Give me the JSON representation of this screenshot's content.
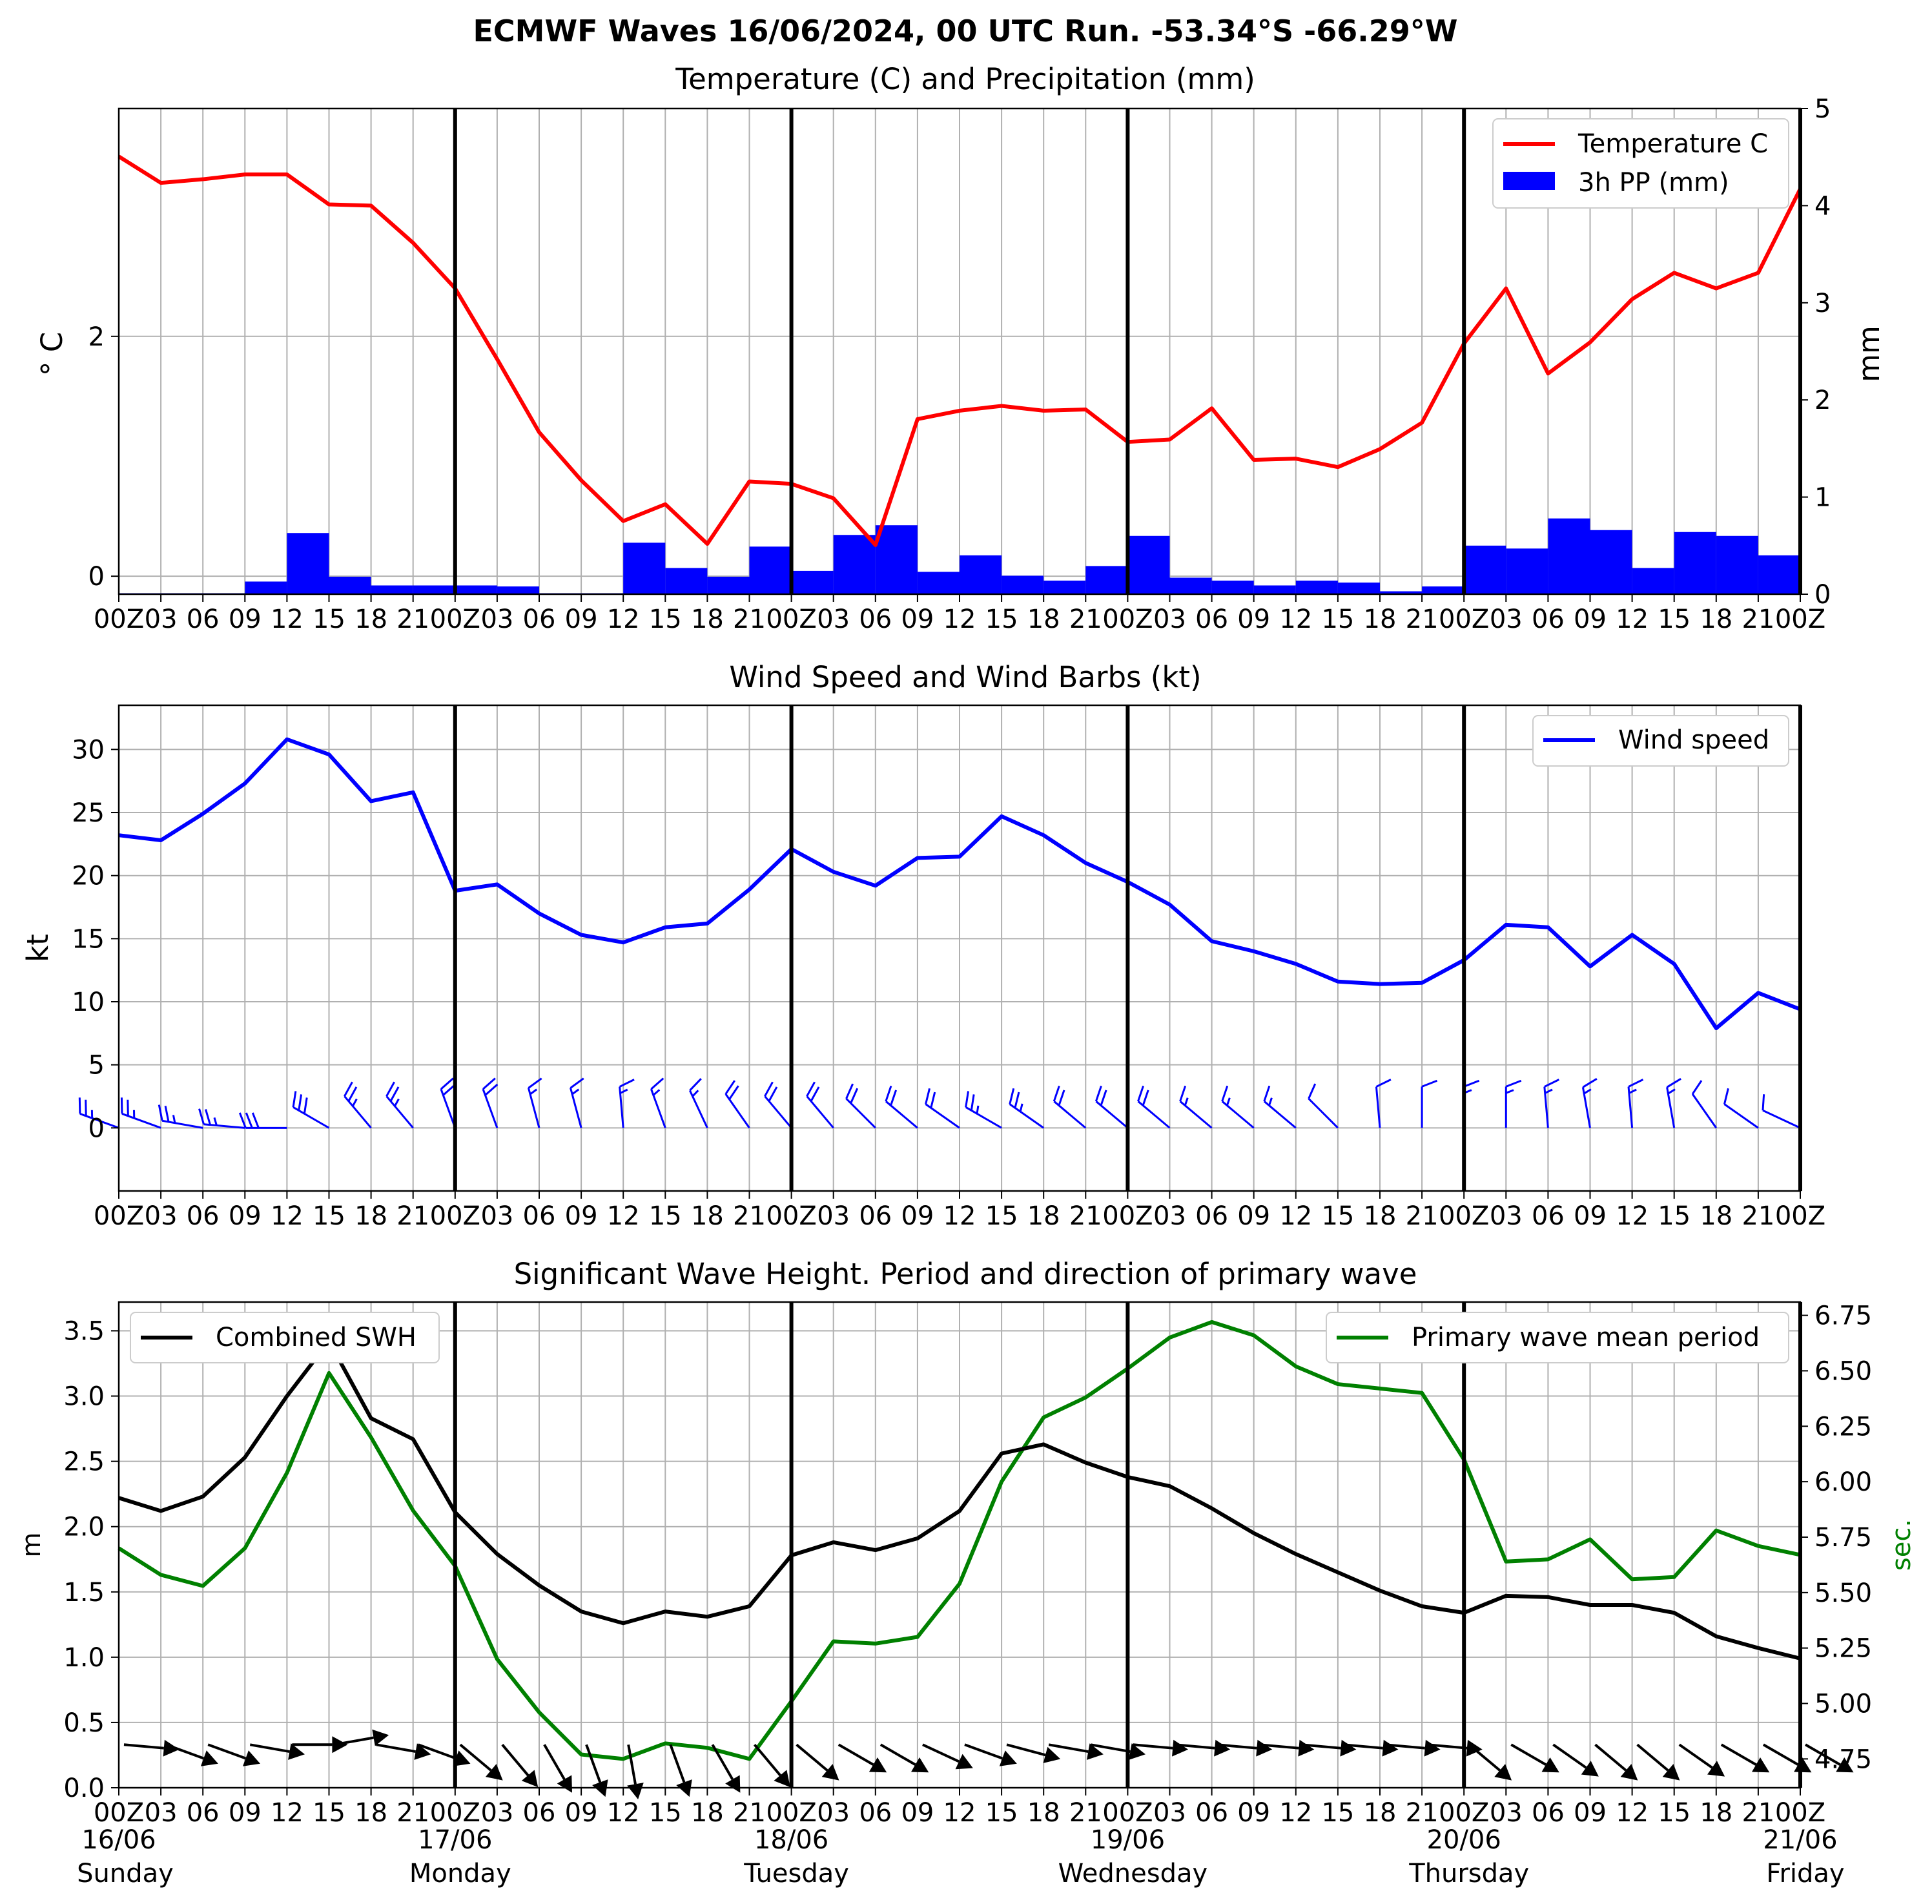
{
  "title": "ECMWF Waves 16/06/2024, 00 UTC Run. -53.34°S -66.29°W",
  "x_tick_labels": [
    "00Z",
    "03",
    "06",
    "09",
    "12",
    "15",
    "18",
    "21",
    "00Z",
    "03",
    "06",
    "09",
    "12",
    "15",
    "18",
    "21",
    "00Z",
    "03",
    "06",
    "09",
    "12",
    "15",
    "18",
    "21",
    "00Z",
    "03",
    "06",
    "09",
    "12",
    "15",
    "18",
    "21",
    "00Z",
    "03",
    "06",
    "09",
    "12",
    "15",
    "18",
    "21",
    "00Z"
  ],
  "dates": [
    {
      "date": "16/06",
      "day": "Sunday"
    },
    {
      "date": "17/06",
      "day": "Monday"
    },
    {
      "date": "18/06",
      "day": "Tuesday"
    },
    {
      "date": "19/06",
      "day": "Wednesday"
    },
    {
      "date": "20/06",
      "day": "Thursday"
    },
    {
      "date": "21/06",
      "day": "Friday"
    }
  ],
  "colors": {
    "temperature": "#ff0000",
    "precipitation": "#0000ff",
    "wind": "#0000ff",
    "swh": "#000000",
    "period": "#008000",
    "grid": "#b0b0b0"
  },
  "chart_data": [
    {
      "type": "line",
      "title": "Temperature (C) and Precipitation (mm)",
      "x_step_hours": 3,
      "ylabel": "° C",
      "ylabel_right": "mm",
      "ylim": [
        -0.15,
        3.9
      ],
      "ylim_right": [
        0,
        5
      ],
      "yticks": [
        0,
        2
      ],
      "yticks_right": [
        0,
        1,
        2,
        3,
        4,
        5
      ],
      "legend": "top-right",
      "grid": true,
      "series": [
        {
          "name": "Temperature C",
          "type": "line",
          "axis": "left",
          "values": [
            3.5,
            3.28,
            3.31,
            3.35,
            3.35,
            3.1,
            3.09,
            2.78,
            2.4,
            1.81,
            1.2,
            0.8,
            0.46,
            0.6,
            0.27,
            0.79,
            0.77,
            0.65,
            0.26,
            1.31,
            1.38,
            1.42,
            1.38,
            1.39,
            1.12,
            1.14,
            1.4,
            0.97,
            0.98,
            0.91,
            1.06,
            1.28,
            1.94,
            2.4,
            1.69,
            1.95,
            2.31,
            2.53,
            2.4,
            2.53,
            3.23
          ]
        },
        {
          "name": "3h PP (mm)",
          "type": "bar",
          "axis": "right",
          "values": [
            0.01,
            0.01,
            0.01,
            0.13,
            0.63,
            0.18,
            0.09,
            0.09,
            0.09,
            0.08,
            0.01,
            0.01,
            0.53,
            0.27,
            0.18,
            0.49,
            0.24,
            0.61,
            0.71,
            0.23,
            0.4,
            0.19,
            0.14,
            0.29,
            0.6,
            0.17,
            0.14,
            0.09,
            0.14,
            0.12,
            0.03,
            0.08,
            0.5,
            0.47,
            0.78,
            0.66,
            0.27,
            0.64,
            0.6,
            0.4
          ]
        }
      ]
    },
    {
      "type": "line",
      "title": "Wind Speed and Wind Barbs (kt)",
      "x_step_hours": 3,
      "ylabel": "kt",
      "ylim": [
        -5,
        33.5
      ],
      "yticks": [
        0,
        5,
        10,
        15,
        20,
        25,
        30
      ],
      "legend": "top-right",
      "grid": true,
      "series": [
        {
          "name": "Wind speed",
          "values": [
            23.2,
            22.8,
            24.9,
            27.3,
            30.8,
            29.6,
            25.9,
            26.6,
            18.8,
            19.3,
            17.0,
            15.3,
            14.7,
            15.9,
            16.2,
            18.9,
            22.1,
            20.3,
            19.2,
            21.4,
            21.5,
            24.7,
            23.2,
            21.0,
            19.5,
            17.7,
            14.8,
            14.0,
            13.0,
            11.6,
            11.4,
            11.5,
            13.3,
            16.1,
            15.9,
            12.8,
            15.3,
            13.0,
            7.9,
            10.7,
            9.4
          ]
        }
      ],
      "barb_direction_deg": [
        290,
        290,
        280,
        275,
        270,
        300,
        320,
        320,
        340,
        340,
        345,
        345,
        355,
        340,
        335,
        325,
        320,
        320,
        315,
        310,
        305,
        300,
        305,
        310,
        310,
        310,
        310,
        310,
        310,
        315,
        355,
        0,
        0,
        0,
        355,
        350,
        355,
        350,
        325,
        305,
        295
      ]
    },
    {
      "type": "line",
      "title": "Significant Wave Height. Period and direction of primary wave",
      "x_step_hours": 3,
      "ylabel": "m",
      "ylabel_right": "sec.",
      "ylim": [
        0,
        3.72
      ],
      "ylim_right": [
        4.62,
        6.81
      ],
      "yticks": [
        0.0,
        0.5,
        1.0,
        1.5,
        2.0,
        2.5,
        3.0,
        3.5
      ],
      "yticks_right": [
        4.75,
        5.0,
        5.25,
        5.5,
        5.75,
        6.0,
        6.25,
        6.5,
        6.75
      ],
      "grid": true,
      "series": [
        {
          "name": "Combined SWH",
          "axis": "left",
          "legend": "top-left",
          "values": [
            2.22,
            2.12,
            2.23,
            2.53,
            3.0,
            3.42,
            2.83,
            2.67,
            2.11,
            1.79,
            1.55,
            1.35,
            1.26,
            1.35,
            1.31,
            1.39,
            1.78,
            1.88,
            1.82,
            1.91,
            2.12,
            2.56,
            2.63,
            2.49,
            2.38,
            2.31,
            2.14,
            1.95,
            1.79,
            1.65,
            1.51,
            1.39,
            1.34,
            1.47,
            1.46,
            1.4,
            1.4,
            1.34,
            1.16,
            1.07,
            0.99
          ]
        },
        {
          "name": "Primary wave mean period",
          "axis": "right",
          "legend": "top-right",
          "values": [
            5.7,
            5.58,
            5.53,
            5.7,
            6.04,
            6.49,
            6.2,
            5.87,
            5.62,
            5.2,
            4.96,
            4.77,
            4.75,
            4.82,
            4.8,
            4.75,
            5.01,
            5.28,
            5.27,
            5.3,
            5.54,
            6.0,
            6.29,
            6.38,
            6.51,
            6.65,
            6.72,
            6.66,
            6.52,
            6.44,
            6.42,
            6.4,
            6.1,
            5.64,
            5.65,
            5.74,
            5.56,
            5.57,
            5.78,
            5.71,
            5.67
          ]
        }
      ],
      "wave_direction_deg": [
        95,
        110,
        110,
        100,
        90,
        80,
        100,
        110,
        130,
        140,
        150,
        160,
        170,
        160,
        150,
        140,
        130,
        120,
        120,
        115,
        110,
        105,
        100,
        100,
        95,
        95,
        95,
        95,
        95,
        95,
        95,
        95,
        130,
        120,
        125,
        130,
        130,
        125,
        120,
        120,
        120
      ]
    }
  ]
}
